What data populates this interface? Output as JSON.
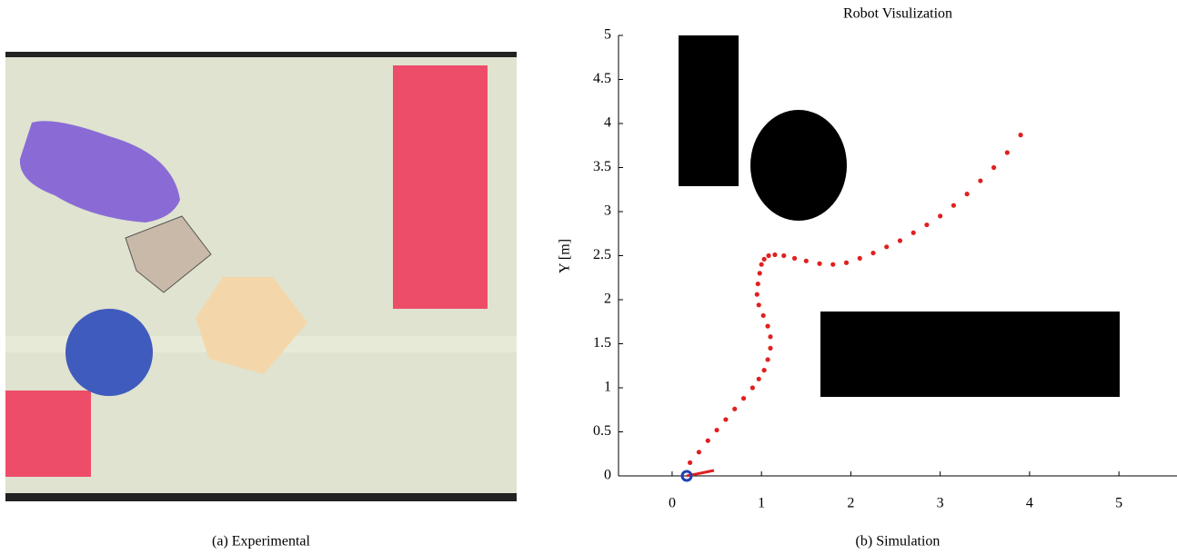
{
  "chart_data": {
    "type": "scatter",
    "title": "Robot Visulization",
    "y_label": "Y [m]",
    "xlim": [
      -0.6,
      5.65
    ],
    "ylim": [
      0,
      5
    ],
    "xticks": [
      0,
      1,
      2,
      3,
      4,
      5
    ],
    "yticks": [
      0,
      0.5,
      1,
      1.5,
      2,
      2.5,
      3,
      3.5,
      4,
      4.5,
      5
    ],
    "series": [
      {
        "color": "#e02020",
        "x": [
          0.2,
          0.3,
          0.4,
          0.5,
          0.6,
          0.7,
          0.8,
          0.9,
          0.97,
          1.03,
          1.07,
          1.1,
          1.1,
          1.07,
          1.02,
          0.97,
          0.95,
          0.96,
          0.98,
          1.0,
          1.03,
          1.08,
          1.15,
          1.25,
          1.37,
          1.5,
          1.65,
          1.8,
          1.95,
          2.1,
          2.25,
          2.4,
          2.55,
          2.7,
          2.85,
          3.0,
          3.15,
          3.3,
          3.45,
          3.6,
          3.75,
          3.9
        ],
        "values": [
          0.15,
          0.27,
          0.4,
          0.52,
          0.64,
          0.76,
          0.88,
          1.0,
          1.1,
          1.2,
          1.32,
          1.45,
          1.58,
          1.7,
          1.82,
          1.94,
          2.06,
          2.18,
          2.3,
          2.4,
          2.46,
          2.5,
          2.51,
          2.5,
          2.47,
          2.44,
          2.41,
          2.4,
          2.42,
          2.47,
          2.53,
          2.6,
          2.67,
          2.76,
          2.85,
          2.95,
          3.07,
          3.2,
          3.35,
          3.5,
          3.67,
          3.87
        ]
      }
    ]
  },
  "captions": [
    "(a) Experimental",
    "(b) Simulation"
  ]
}
